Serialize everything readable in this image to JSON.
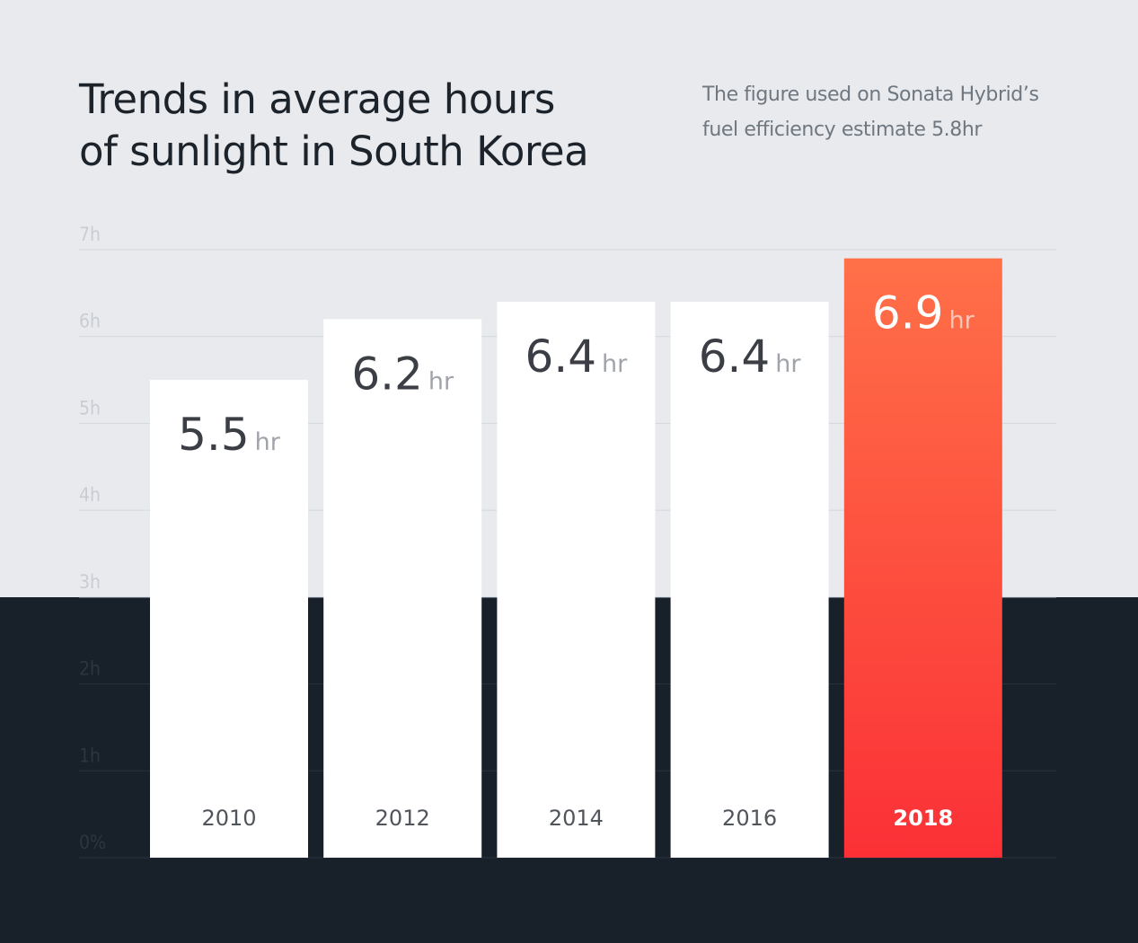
{
  "title_lines": [
    "Trends in average hours",
    "of sunlight in South Korea"
  ],
  "note_lines": [
    "The figure used on Sonata Hybrid’s",
    "fuel efficiency estimate 5.8hr"
  ],
  "colors": {
    "background_top": "#e8eaee",
    "background_bottom": "#18202a",
    "bar": "#ffffff",
    "highlight_top": "#ff7048",
    "highlight_bottom": "#fb3036",
    "value_text": "#3b3f45",
    "unit_text": "#a0a4aa",
    "year_text": "#50555c",
    "tick_text_light": "#c9cdd3",
    "tick_text_dark": "#2c3540",
    "grid_light": "#d3d7dd",
    "grid_dark": "#2a333e"
  },
  "chart_data": {
    "type": "bar",
    "title": "Trends in average hours of sunlight in South Korea",
    "categories": [
      "2010",
      "2012",
      "2014",
      "2016",
      "2018"
    ],
    "values": [
      5.5,
      6.2,
      6.4,
      6.4,
      6.9
    ],
    "value_labels": [
      "5.5",
      "6.2",
      "6.4",
      "6.4",
      "6.9"
    ],
    "unit": "hr",
    "highlight_index": 4,
    "ylim": [
      0,
      7
    ],
    "yticks": [
      {
        "value": 0,
        "label": "0%"
      },
      {
        "value": 1,
        "label": "1h"
      },
      {
        "value": 2,
        "label": "2h"
      },
      {
        "value": 3,
        "label": "3h"
      },
      {
        "value": 4,
        "label": "4h"
      },
      {
        "value": 5,
        "label": "5h"
      },
      {
        "value": 6,
        "label": "6h"
      },
      {
        "value": 7,
        "label": "7h"
      }
    ],
    "grid": true,
    "legend": "none"
  }
}
